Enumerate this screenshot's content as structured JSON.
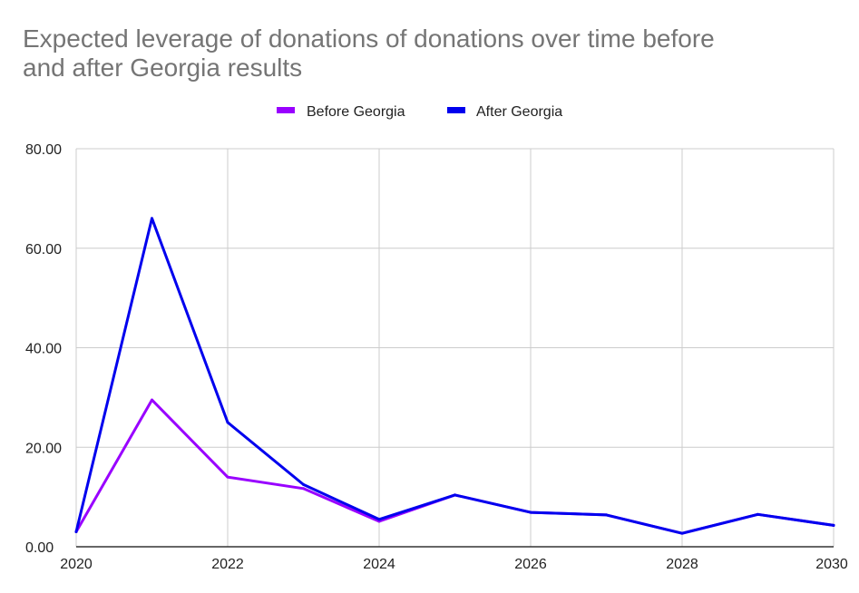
{
  "chart_data": {
    "type": "line",
    "title_lines": [
      "Expected leverage of donations of donations over time before",
      "and after Georgia results"
    ],
    "xlabel": "",
    "ylabel": "",
    "x": [
      2020,
      2021,
      2022,
      2023,
      2024,
      2025,
      2026,
      2027,
      2028,
      2029,
      2030
    ],
    "xlim": [
      2020,
      2030
    ],
    "ylim": [
      0,
      80
    ],
    "x_ticks": [
      "2020",
      "2022",
      "2024",
      "2026",
      "2028",
      "2030"
    ],
    "x_tick_values": [
      2020,
      2022,
      2024,
      2026,
      2028,
      2030
    ],
    "y_ticks": [
      "0.00",
      "20.00",
      "40.00",
      "60.00",
      "80.00"
    ],
    "y_tick_values": [
      0,
      20,
      40,
      60,
      80
    ],
    "grid": true,
    "legend_position": "top-center",
    "series": [
      {
        "name": "Before Georgia",
        "color": "#9900ff",
        "values": [
          3.0,
          29.5,
          14.0,
          11.7,
          5.1,
          10.4,
          6.9,
          6.4,
          2.7,
          6.5,
          4.3
        ]
      },
      {
        "name": "After Georgia",
        "color": "#0000ee",
        "values": [
          3.0,
          66.0,
          25.0,
          12.5,
          5.5,
          10.4,
          6.9,
          6.4,
          2.7,
          6.5,
          4.3
        ]
      }
    ]
  }
}
